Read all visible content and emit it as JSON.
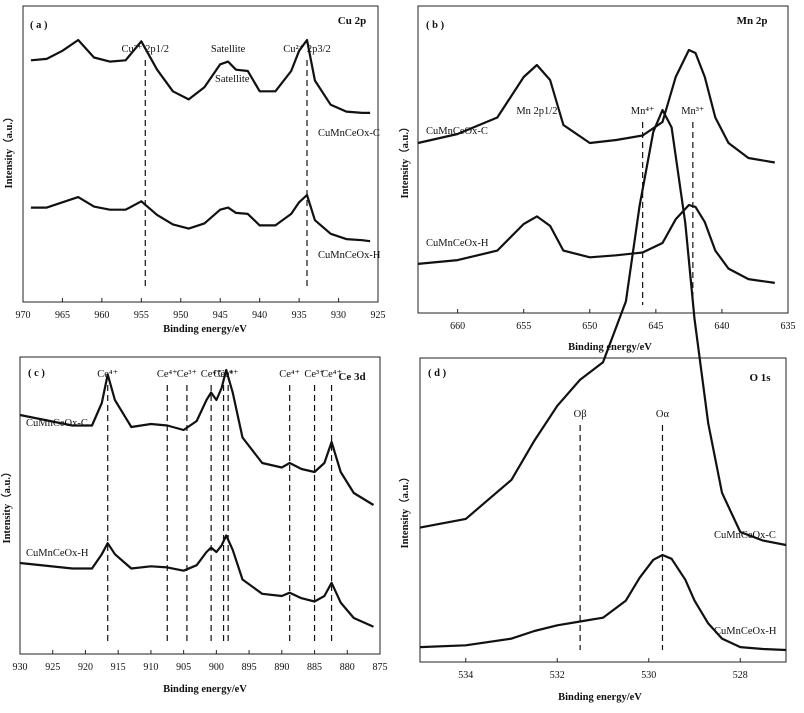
{
  "chart_data": [
    {
      "panel": "(a)",
      "title": "Cu 2p",
      "type": "line",
      "xlabel": "Binding energy/eV",
      "ylabel": "Intensity（a.u.）",
      "xlim": [
        970,
        925
      ],
      "xticks": [
        "970",
        "965",
        "960",
        "955",
        "950",
        "945",
        "940",
        "935",
        "930",
        "925"
      ],
      "annotations": [
        {
          "text": "Cu²⁺ 2p1/2",
          "x": 954.5
        },
        {
          "text": "Satellite",
          "x": 944
        },
        {
          "text": "Cu²⁺ 2p3/2",
          "x": 934
        }
      ],
      "series": [
        {
          "name": "CuMnCeOx-C",
          "x": [
            969,
            967,
            965,
            963,
            961,
            959,
            957,
            955,
            953,
            951,
            949,
            947,
            945,
            944,
            943,
            941.5,
            940,
            938,
            936,
            935,
            934,
            933,
            931,
            929,
            927,
            926
          ],
          "y": [
            0.85,
            0.86,
            0.92,
            1.0,
            0.87,
            0.84,
            0.85,
            0.99,
            0.78,
            0.62,
            0.56,
            0.65,
            0.82,
            0.84,
            0.78,
            0.77,
            0.62,
            0.62,
            0.77,
            0.92,
            1.0,
            0.7,
            0.52,
            0.47,
            0.46,
            0.46
          ]
        },
        {
          "name": "CuMnCeOx-H",
          "x": [
            969,
            967,
            965,
            963,
            961,
            959,
            957,
            955,
            953,
            951,
            949,
            947,
            945,
            944,
            943,
            941.5,
            940,
            938,
            936,
            935,
            934,
            933,
            931,
            929,
            927,
            926
          ],
          "y": [
            0.88,
            0.88,
            0.93,
            0.98,
            0.89,
            0.86,
            0.86,
            0.94,
            0.81,
            0.72,
            0.68,
            0.73,
            0.86,
            0.88,
            0.83,
            0.82,
            0.71,
            0.71,
            0.82,
            0.93,
            1.0,
            0.76,
            0.63,
            0.58,
            0.57,
            0.56
          ]
        }
      ],
      "reference_lines_x": [
        954.5,
        934
      ]
    },
    {
      "panel": "(b)",
      "title": "Mn 2p",
      "type": "line",
      "xlabel": "Binding energy/eV",
      "ylabel": "Intensity（a.u.）",
      "xlim": [
        663,
        635
      ],
      "xticks": [
        "660",
        "655",
        "650",
        "645",
        "640",
        "635"
      ],
      "annotations": [
        {
          "text": "Mn 2p1/2",
          "x": 654
        },
        {
          "text": "Mn⁴⁺",
          "x": 646
        },
        {
          "text": "Mn³⁺",
          "x": 642.2
        }
      ],
      "series": [
        {
          "name": "CuMnCeOx-C",
          "x": [
            663,
            660,
            657,
            655,
            654,
            653,
            652,
            650,
            648,
            646,
            644.5,
            643.5,
            642.5,
            642,
            641.3,
            640.5,
            639.5,
            638,
            636
          ],
          "y": [
            0.38,
            0.44,
            0.55,
            0.82,
            0.9,
            0.8,
            0.5,
            0.38,
            0.4,
            0.43,
            0.52,
            0.82,
            1.0,
            0.98,
            0.82,
            0.55,
            0.38,
            0.28,
            0.25
          ]
        },
        {
          "name": "CuMnCeOx-H",
          "x": [
            663,
            660,
            657,
            655,
            654,
            653,
            652,
            650,
            648,
            646,
            644.5,
            643.5,
            642.5,
            642,
            641.3,
            640.5,
            639.5,
            638,
            636
          ],
          "y": [
            0.38,
            0.42,
            0.52,
            0.8,
            0.88,
            0.78,
            0.52,
            0.45,
            0.47,
            0.5,
            0.6,
            0.85,
            1.0,
            0.98,
            0.82,
            0.52,
            0.33,
            0.22,
            0.18
          ]
        }
      ],
      "reference_lines_x": [
        646,
        642.2
      ]
    },
    {
      "panel": "(c)",
      "title": "Ce 3d",
      "type": "line",
      "xlabel": "Binding energy/eV",
      "ylabel": "Intensity（a.u.）",
      "xlim": [
        930,
        875
      ],
      "xticks": [
        "930",
        "925",
        "920",
        "915",
        "910",
        "905",
        "900",
        "895",
        "890",
        "885",
        "880",
        "875"
      ],
      "annotations": [
        {
          "text": "Ce⁴⁺",
          "x": 916.6
        },
        {
          "text": "Ce⁴⁺",
          "x": 907.5
        },
        {
          "text": "Ce³⁺",
          "x": 904.5
        },
        {
          "text": "Ce⁴⁺",
          "x": 900.8
        },
        {
          "text": "Ce³⁺",
          "x": 898.9
        },
        {
          "text": "Ce⁴⁺",
          "x": 898.2
        },
        {
          "text": "Ce⁴⁺",
          "x": 888.8
        },
        {
          "text": "Ce³⁺",
          "x": 885
        },
        {
          "text": "Ce⁴⁺",
          "x": 882.4
        }
      ],
      "series": [
        {
          "name": "CuMnCeOx-C",
          "x": [
            930,
            922,
            919,
            917.5,
            916.6,
            915.5,
            913,
            910,
            907.5,
            905,
            903,
            901.5,
            900.8,
            900,
            899.2,
            898.5,
            897.5,
            896,
            893,
            890,
            888.8,
            887,
            885,
            883.5,
            882.4,
            881,
            879,
            876
          ],
          "y": [
            0.7,
            0.63,
            0.63,
            0.78,
            0.97,
            0.8,
            0.62,
            0.64,
            0.63,
            0.6,
            0.66,
            0.8,
            0.85,
            0.8,
            0.88,
            1.0,
            0.85,
            0.55,
            0.38,
            0.35,
            0.38,
            0.34,
            0.32,
            0.38,
            0.52,
            0.32,
            0.18,
            0.1
          ]
        },
        {
          "name": "CuMnCeOx-H",
          "x": [
            930,
            922,
            919,
            917.5,
            916.6,
            915.5,
            913,
            910,
            907.5,
            905,
            903,
            901.5,
            900.8,
            900,
            899.2,
            898.5,
            897.5,
            896,
            893,
            890,
            888.8,
            887,
            885,
            883.5,
            882.4,
            881,
            879,
            876
          ],
          "y": [
            0.7,
            0.65,
            0.65,
            0.78,
            0.88,
            0.78,
            0.65,
            0.67,
            0.66,
            0.63,
            0.68,
            0.8,
            0.84,
            0.8,
            0.86,
            0.95,
            0.82,
            0.55,
            0.42,
            0.4,
            0.43,
            0.38,
            0.35,
            0.4,
            0.52,
            0.34,
            0.2,
            0.12
          ]
        }
      ],
      "reference_lines_x": [
        916.6,
        907.5,
        904.5,
        900.8,
        898.9,
        898.2,
        888.8,
        885,
        882.4
      ]
    },
    {
      "panel": "(d)",
      "title": "O 1s",
      "type": "line",
      "xlabel": "Binding energy/eV",
      "ylabel": "Intensity（a.u.）",
      "xlim": [
        535,
        527
      ],
      "xticks": [
        "534",
        "532",
        "530",
        "528"
      ],
      "annotations": [
        {
          "text": "Oβ",
          "x": 531.5
        },
        {
          "text": "Oα",
          "x": 529.7
        }
      ],
      "series": [
        {
          "name": "CuMnCeOx-C",
          "x": [
            535,
            534,
            533,
            532.5,
            532,
            531.5,
            531,
            530.5,
            530.2,
            529.9,
            529.7,
            529.5,
            529.2,
            529,
            528.7,
            528.4,
            528,
            527.5,
            527
          ],
          "y": [
            0.04,
            0.06,
            0.15,
            0.24,
            0.32,
            0.38,
            0.42,
            0.56,
            0.78,
            0.95,
            1.0,
            0.96,
            0.74,
            0.52,
            0.28,
            0.12,
            0.03,
            0.01,
            0.0
          ]
        },
        {
          "name": "CuMnCeOx-H",
          "x": [
            535,
            534,
            533,
            532.5,
            532,
            531.5,
            531,
            530.5,
            530.2,
            529.9,
            529.7,
            529.5,
            529.2,
            529,
            528.7,
            528.4,
            528,
            527.5,
            527
          ],
          "y": [
            0.03,
            0.05,
            0.12,
            0.2,
            0.26,
            0.3,
            0.34,
            0.52,
            0.76,
            0.95,
            1.0,
            0.96,
            0.74,
            0.52,
            0.28,
            0.12,
            0.03,
            0.01,
            0.0
          ]
        }
      ],
      "reference_lines_x": [
        531.5,
        529.7
      ]
    }
  ],
  "labels": {
    "a": {
      "panel": "( a )",
      "title": "Cu 2p",
      "sat": "Satellite",
      "xlabel": "Binding energy/eV",
      "ylabel": "Intensity（a.u.）",
      "s1": "CuMnCeOx-C",
      "s2": "CuMnCeOx-H"
    },
    "b": {
      "panel": "( b )",
      "title": "Mn 2p",
      "xlabel": "Binding energy/eV",
      "ylabel": "Intensity（a.u.）",
      "s1": "CuMnCeOx-C",
      "s2": "CuMnCeOx-H"
    },
    "c": {
      "panel": "( c )",
      "title": "Ce 3d",
      "xlabel": "Binding energy/eV",
      "ylabel": "Intensity（a.u.）",
      "s1": "CuMnCeOx-C",
      "s2": "CuMnCeOx-H"
    },
    "d": {
      "panel": "( d )",
      "title": "O 1s",
      "xlabel": "Binding energy/eV",
      "ylabel": "Intensity（a.u.）",
      "s1": "CuMnCeOx-C",
      "s2": "CuMnCeOx-H"
    }
  }
}
